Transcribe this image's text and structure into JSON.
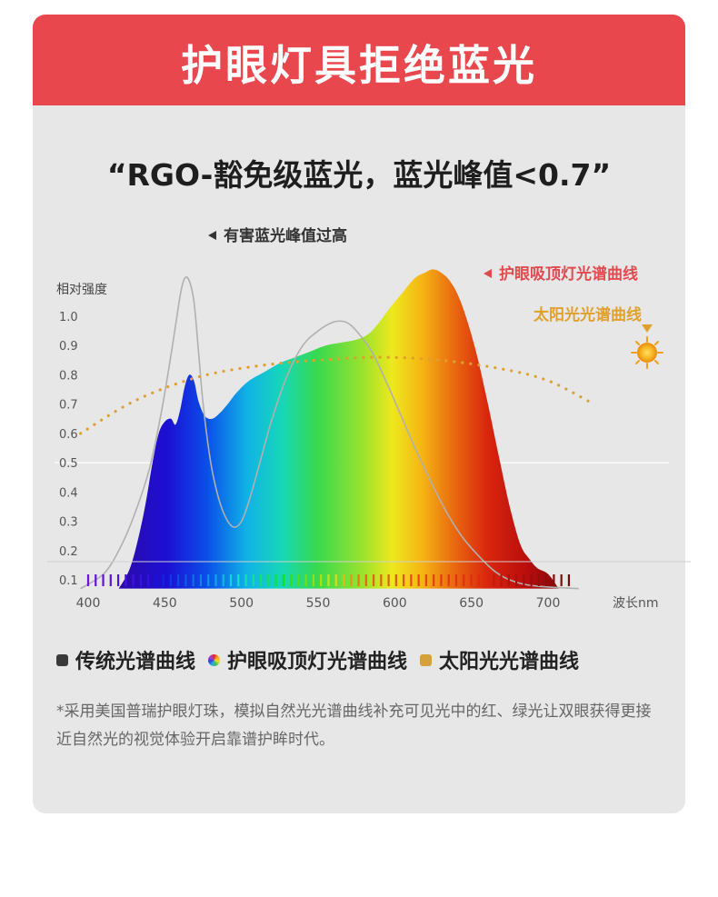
{
  "banner": {
    "title": "护眼灯具拒绝蓝光"
  },
  "subtitle": "“RGO-豁免级蓝光，蓝光峰值<0.7”",
  "colors": {
    "banner_red": "#e9474e",
    "annotation_red": "#e14a4f",
    "sun_orange": "#e0a02e",
    "traditional_gray": "#3a3a3a"
  },
  "chart_data": {
    "type": "area",
    "ylabel": "相对强度",
    "xlabel": "波长nm",
    "x_ticks": [
      400,
      450,
      500,
      550,
      600,
      650,
      700
    ],
    "y_ticks": [
      0.1,
      0.2,
      0.3,
      0.4,
      0.5,
      0.6,
      0.7,
      0.8,
      0.9,
      1.0
    ],
    "xlim": [
      400,
      720
    ],
    "ylim": [
      0.07,
      1.16
    ],
    "annotations": {
      "harmful_peak": "有害蓝光峰值过高",
      "eye_curve": "护眼吸顶灯光谱曲线",
      "sun_curve": "太阳光光谱曲线"
    },
    "series": [
      {
        "name": "传统光谱曲线",
        "color": "#b0b0b0",
        "style": "line",
        "points": [
          [
            395,
            0.07
          ],
          [
            410,
            0.12
          ],
          [
            420,
            0.2
          ],
          [
            430,
            0.32
          ],
          [
            440,
            0.48
          ],
          [
            448,
            0.68
          ],
          [
            455,
            0.9
          ],
          [
            460,
            1.07
          ],
          [
            463,
            1.13
          ],
          [
            466,
            1.12
          ],
          [
            469,
            1.05
          ],
          [
            472,
            0.88
          ],
          [
            475,
            0.7
          ],
          [
            480,
            0.5
          ],
          [
            485,
            0.38
          ],
          [
            490,
            0.31
          ],
          [
            495,
            0.28
          ],
          [
            500,
            0.3
          ],
          [
            505,
            0.37
          ],
          [
            512,
            0.5
          ],
          [
            520,
            0.65
          ],
          [
            530,
            0.8
          ],
          [
            540,
            0.9
          ],
          [
            550,
            0.95
          ],
          [
            560,
            0.98
          ],
          [
            568,
            0.98
          ],
          [
            575,
            0.95
          ],
          [
            585,
            0.88
          ],
          [
            595,
            0.77
          ],
          [
            605,
            0.65
          ],
          [
            615,
            0.53
          ],
          [
            625,
            0.42
          ],
          [
            635,
            0.32
          ],
          [
            645,
            0.24
          ],
          [
            655,
            0.18
          ],
          [
            665,
            0.13
          ],
          [
            675,
            0.1
          ],
          [
            690,
            0.08
          ],
          [
            720,
            0.07
          ]
        ]
      },
      {
        "name": "护眼吸顶灯光谱曲线",
        "style": "spectrum-area",
        "points": [
          [
            420,
            0.07
          ],
          [
            428,
            0.15
          ],
          [
            436,
            0.32
          ],
          [
            442,
            0.5
          ],
          [
            446,
            0.6
          ],
          [
            450,
            0.64
          ],
          [
            454,
            0.65
          ],
          [
            457,
            0.63
          ],
          [
            460,
            0.68
          ],
          [
            463,
            0.76
          ],
          [
            466,
            0.8
          ],
          [
            469,
            0.78
          ],
          [
            472,
            0.71
          ],
          [
            476,
            0.66
          ],
          [
            481,
            0.65
          ],
          [
            486,
            0.67
          ],
          [
            491,
            0.7
          ],
          [
            497,
            0.74
          ],
          [
            505,
            0.78
          ],
          [
            515,
            0.81
          ],
          [
            525,
            0.84
          ],
          [
            535,
            0.86
          ],
          [
            545,
            0.88
          ],
          [
            555,
            0.9
          ],
          [
            565,
            0.91
          ],
          [
            575,
            0.92
          ],
          [
            583,
            0.94
          ],
          [
            590,
            0.98
          ],
          [
            597,
            1.03
          ],
          [
            605,
            1.08
          ],
          [
            613,
            1.13
          ],
          [
            620,
            1.15
          ],
          [
            625,
            1.16
          ],
          [
            630,
            1.15
          ],
          [
            636,
            1.12
          ],
          [
            643,
            1.05
          ],
          [
            652,
            0.9
          ],
          [
            660,
            0.72
          ],
          [
            668,
            0.52
          ],
          [
            675,
            0.35
          ],
          [
            682,
            0.22
          ],
          [
            688,
            0.17
          ],
          [
            693,
            0.14
          ],
          [
            700,
            0.12
          ],
          [
            707,
            0.07
          ]
        ]
      },
      {
        "name": "太阳光光谱曲线",
        "color": "#e0a02e",
        "style": "dotted",
        "points": [
          [
            395,
            0.6
          ],
          [
            430,
            0.71
          ],
          [
            470,
            0.79
          ],
          [
            510,
            0.83
          ],
          [
            550,
            0.85
          ],
          [
            590,
            0.86
          ],
          [
            630,
            0.85
          ],
          [
            670,
            0.82
          ],
          [
            700,
            0.78
          ],
          [
            730,
            0.7
          ]
        ]
      }
    ]
  },
  "legend": [
    {
      "label": "传统光谱曲线",
      "icon": "gray-square"
    },
    {
      "label": "护眼吸顶灯光谱曲线",
      "icon": "rainbow-circle"
    },
    {
      "label": "太阳光光谱曲线",
      "icon": "orange-square"
    }
  ],
  "footnote": "*采用美国普瑞护眼灯珠，模拟自然光光谱曲线补充可见光中的红、绿光让双眼获得更接近自然光的视觉体验开启靠谱护眸时代。"
}
